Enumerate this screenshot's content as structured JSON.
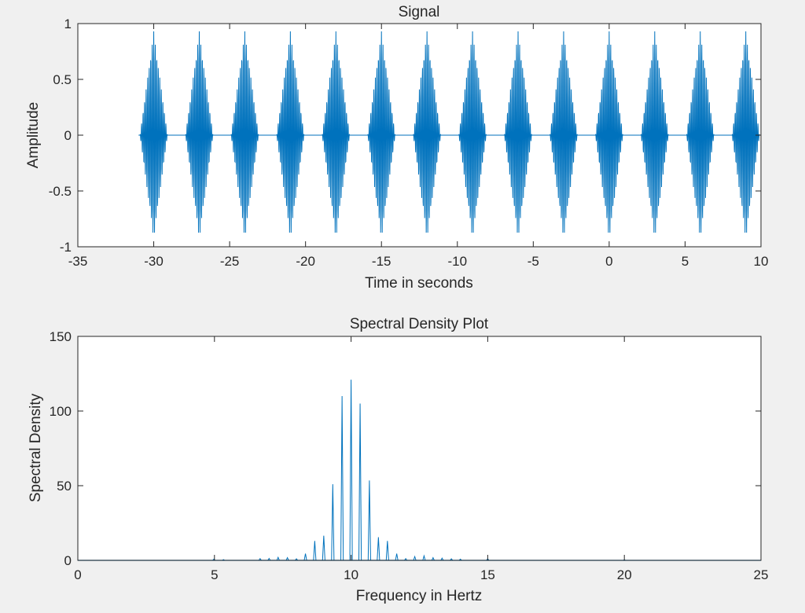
{
  "figure": {
    "background": "#f0f0f0",
    "axes_background": "#ffffff",
    "line_color": "#0072bd",
    "axis_color": "#262626"
  },
  "chart_data": [
    {
      "type": "line",
      "title": "Signal",
      "xlabel": "Time in seconds",
      "ylabel": "Amplitude",
      "xlim": [
        -35,
        10
      ],
      "ylim": [
        -1,
        1
      ],
      "xticks": [
        -35,
        -30,
        -25,
        -20,
        -15,
        -10,
        -5,
        0,
        5,
        10
      ],
      "xtick_labels": [
        "-35",
        "-30",
        "-25",
        "-20",
        "-15",
        "-10",
        "-5",
        "0",
        "5",
        "10"
      ],
      "yticks": [
        -1,
        -0.5,
        0,
        0.5,
        1
      ],
      "ytick_labels": [
        "-1",
        "-0.5",
        "0",
        "0.5",
        "1"
      ],
      "grid": false,
      "signal_start": -31,
      "burst_centers": [
        -30,
        -27,
        -24,
        -21,
        -18,
        -15,
        -12,
        -9,
        -6,
        -3,
        0,
        3,
        6,
        9
      ],
      "burst_half_width": 0.9,
      "peak_amplitude": 0.93,
      "carrier_frequency_hz": 10
    },
    {
      "type": "line",
      "title": "Spectral Density Plot",
      "xlabel": "Frequency in Hertz",
      "ylabel": "Spectral Density",
      "xlim": [
        0,
        25
      ],
      "ylim": [
        0,
        150
      ],
      "xticks": [
        0,
        5,
        10,
        15,
        20,
        25
      ],
      "xtick_labels": [
        "0",
        "5",
        "10",
        "15",
        "20",
        "25"
      ],
      "yticks": [
        0,
        50,
        100,
        150
      ],
      "ytick_labels": [
        "0",
        "50",
        "100",
        "150"
      ],
      "grid": false,
      "peaks": [
        {
          "x": 4.98,
          "y": 0.8
        },
        {
          "x": 5.33,
          "y": 0.5
        },
        {
          "x": 6.67,
          "y": 1.2
        },
        {
          "x": 7.0,
          "y": 1.3
        },
        {
          "x": 7.33,
          "y": 2.0
        },
        {
          "x": 7.67,
          "y": 1.8
        },
        {
          "x": 8.0,
          "y": 1.0
        },
        {
          "x": 8.33,
          "y": 4.5
        },
        {
          "x": 8.67,
          "y": 13
        },
        {
          "x": 9.0,
          "y": 16.5
        },
        {
          "x": 9.33,
          "y": 51
        },
        {
          "x": 9.67,
          "y": 110
        },
        {
          "x": 10.0,
          "y": 121
        },
        {
          "x": 10.33,
          "y": 105
        },
        {
          "x": 10.67,
          "y": 53.5
        },
        {
          "x": 11.0,
          "y": 15.5
        },
        {
          "x": 11.33,
          "y": 13
        },
        {
          "x": 11.67,
          "y": 4.5
        },
        {
          "x": 12.0,
          "y": 1.2
        },
        {
          "x": 12.33,
          "y": 2.5
        },
        {
          "x": 12.67,
          "y": 3.0
        },
        {
          "x": 13.0,
          "y": 1.8
        },
        {
          "x": 13.33,
          "y": 1.5
        },
        {
          "x": 13.67,
          "y": 1.0
        },
        {
          "x": 14.0,
          "y": 0.8
        },
        {
          "x": 15.0,
          "y": 1.0
        },
        {
          "x": 20.0,
          "y": 0.3
        }
      ]
    }
  ]
}
